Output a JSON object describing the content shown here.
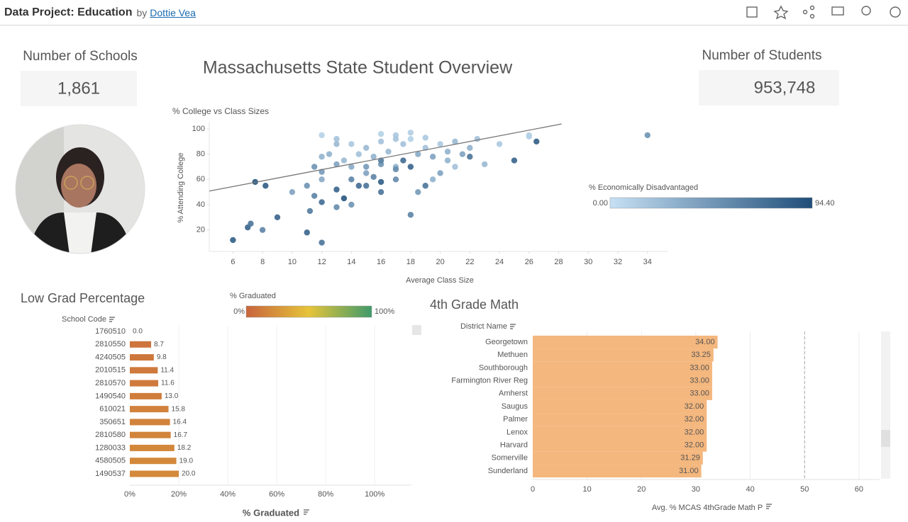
{
  "header": {
    "title": "Data Project: Education",
    "by": "by",
    "author": "Dottie Vea"
  },
  "dashboard_title": "Massachusetts State Student Overview",
  "kpis": [
    {
      "label": "Number of Schools",
      "value": "1,861"
    },
    {
      "label": "Number of Students",
      "value": "953,748"
    }
  ],
  "chart_data": [
    {
      "type": "scatter",
      "title": "% College vs Class Sizes",
      "x_label": "Average Class Size",
      "y_label": "% Attending College",
      "xlim": [
        4.4,
        35.4
      ],
      "ylim": [
        3,
        105.6
      ],
      "xticks": [
        6,
        8,
        10,
        12,
        14,
        16,
        18,
        20,
        22,
        24,
        26,
        28,
        30,
        32,
        34
      ],
      "yticks": [
        20,
        40,
        60,
        80,
        100
      ],
      "x": [
        6,
        7,
        7.2,
        7.5,
        8,
        8.2,
        9,
        11,
        12,
        11.2,
        11.5,
        12,
        10,
        11,
        12,
        13,
        13,
        13.5,
        14,
        14,
        15,
        15,
        16,
        16,
        17,
        17,
        18,
        18.5,
        19,
        19.5,
        20,
        21,
        22,
        23,
        24,
        25,
        26,
        26.5,
        34,
        26,
        22.5,
        21,
        20,
        19,
        18,
        17,
        16,
        15,
        14,
        13,
        12,
        12.5,
        13.5,
        14.5,
        15.5,
        16.5,
        17.5,
        18.5,
        19.5,
        20.5,
        15,
        16,
        17,
        14,
        13,
        12,
        12,
        11.5,
        13,
        16,
        17,
        18,
        19,
        21.5,
        22,
        20.5,
        16,
        17.5,
        18,
        14.5,
        15.5
      ],
      "values": [
        12,
        22,
        25,
        58,
        20,
        55,
        30,
        18,
        10,
        35,
        47,
        42,
        50,
        55,
        60,
        38,
        52,
        45,
        60,
        40,
        55,
        65,
        58,
        50,
        60,
        70,
        32,
        50,
        55,
        60,
        65,
        70,
        85,
        72,
        88,
        75,
        94,
        90,
        95,
        95,
        92,
        90,
        88,
        85,
        92,
        95,
        90,
        85,
        88,
        92,
        95,
        80,
        75,
        80,
        78,
        82,
        88,
        80,
        78,
        75,
        70,
        72,
        68,
        70,
        72,
        78,
        66,
        70,
        88,
        96,
        92,
        97,
        93,
        80,
        78,
        82,
        75,
        75,
        70,
        55,
        62
      ],
      "color_values": [
        85,
        80,
        70,
        90,
        60,
        85,
        80,
        80,
        70,
        65,
        60,
        75,
        40,
        50,
        35,
        55,
        80,
        90,
        60,
        50,
        70,
        40,
        85,
        70,
        55,
        30,
        60,
        45,
        70,
        30,
        40,
        20,
        30,
        25,
        15,
        80,
        12,
        85,
        50,
        10,
        20,
        25,
        15,
        20,
        10,
        15,
        20,
        25,
        15,
        20,
        10,
        30,
        25,
        20,
        30,
        25,
        20,
        35,
        40,
        30,
        45,
        50,
        55,
        35,
        40,
        30,
        45,
        50,
        25,
        10,
        18,
        12,
        15,
        40,
        70,
        30,
        65,
        75,
        80,
        75,
        60
      ],
      "trend_line": {
        "x": [
          4.4,
          28.2
        ],
        "y": [
          50.8,
          103.9
        ]
      },
      "color_scale": {
        "title": "% Economically Disadvantaged",
        "min": {
          "value": 0,
          "label": "0.00"
        },
        "max": {
          "value": 94.4,
          "label": "94.40"
        },
        "colors": [
          "#c6e0f4",
          "#1f4e79"
        ]
      }
    },
    {
      "type": "hbar",
      "title": "Low Grad Percentage",
      "category_header": "School Code",
      "x_label": "% Graduated",
      "categories": [
        "1760510",
        "2810550",
        "4240505",
        "2010515",
        "2810570",
        "1490540",
        "610021",
        "350651",
        "2810580",
        "1280033",
        "4580505",
        "1490537"
      ],
      "values": [
        0,
        8.7,
        9.8,
        11.4,
        11.6,
        13,
        15.8,
        16.4,
        16.7,
        18.2,
        19,
        20
      ],
      "value_labels": [
        "0.0",
        "8.7",
        "9.8",
        "11.4",
        "11.6",
        "13.0",
        "15.8",
        "16.4",
        "16.7",
        "18.2",
        "19.0",
        "20.0"
      ],
      "xlim": [
        0,
        115
      ],
      "xticks": [
        {
          "value": 0,
          "label": "0%"
        },
        {
          "value": 20,
          "label": "20%"
        },
        {
          "value": 40,
          "label": "40%"
        },
        {
          "value": 60,
          "label": "60%"
        },
        {
          "value": 80,
          "label": "80%"
        },
        {
          "value": 100,
          "label": "100%"
        }
      ],
      "color_scale": {
        "title": "% Graduated",
        "min": {
          "value": 0,
          "label": "0%"
        },
        "max": {
          "value": 100,
          "label": "100%"
        },
        "colors": [
          "#c8643c",
          "#e6c43a",
          "#3f9a6b"
        ]
      }
    },
    {
      "type": "hbar",
      "title": "4th Grade Math",
      "category_header": "District Name",
      "x_label": "Avg. % MCAS 4thGrade Math P",
      "categories": [
        "Georgetown",
        "Methuen",
        "Southborough",
        "Farmington River Reg",
        "Amherst",
        "Saugus",
        "Palmer",
        "Lenox",
        "Harvard",
        "Somerville",
        "Sunderland"
      ],
      "values": [
        34,
        33.25,
        33,
        33,
        33,
        32,
        32,
        32,
        32,
        31.29,
        31
      ],
      "value_labels": [
        "34.00",
        "33.25",
        "33.00",
        "33.00",
        "33.00",
        "32.00",
        "32.00",
        "32.00",
        "32.00",
        "31.29",
        "31.00"
      ],
      "xlim": [
        0,
        63.8
      ],
      "xticks": [
        0,
        10,
        20,
        30,
        40,
        50,
        60
      ],
      "reference_line": 50,
      "color": "#f4b77e"
    }
  ]
}
